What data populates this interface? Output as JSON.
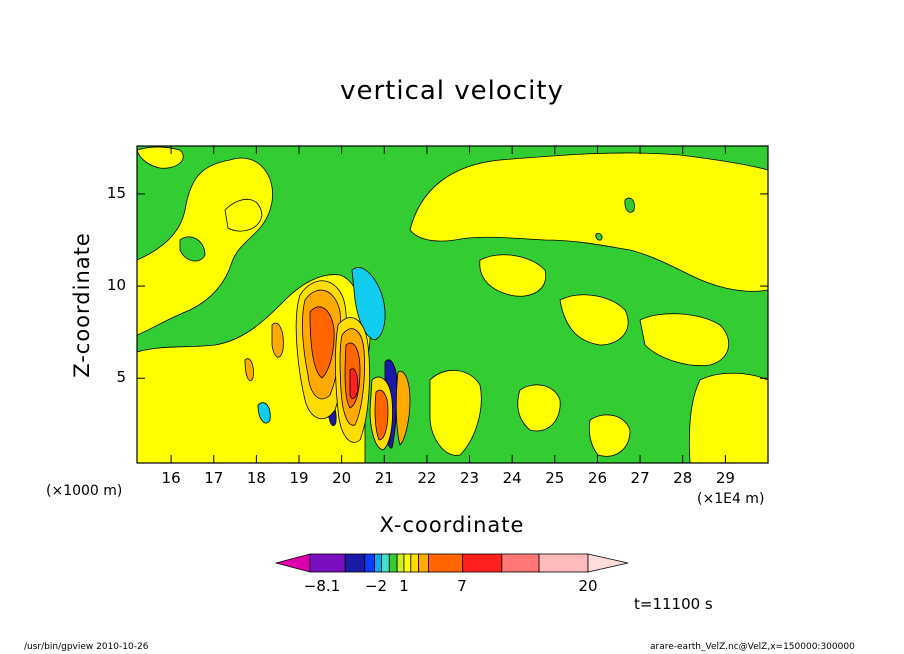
{
  "chart_data": {
    "type": "heatmap",
    "title": "vertical velocity",
    "xlabel": "X-coordinate",
    "ylabel": "Z-coordinate",
    "x_unit_left": "(×1000 m)",
    "x_unit_right": "(×1E4 m)",
    "x_ticks": [
      "16",
      "17",
      "18",
      "19",
      "20",
      "21",
      "22",
      "23",
      "24",
      "25",
      "26",
      "27",
      "28",
      "29"
    ],
    "y_ticks": [
      "5",
      "10",
      "15"
    ],
    "colorbar_labels": [
      "-8.1",
      "-2",
      "1",
      "7",
      "20"
    ],
    "colorbar_colors": [
      "#dd00aa",
      "#7a0dbf",
      "#1a1aa8",
      "#0a3cff",
      "#11aaee",
      "#44ddcc",
      "#33cc33",
      "#ccee22",
      "#ffff00",
      "#ffdd00",
      "#ffaa00",
      "#ff6600",
      "#ff2020",
      "#ff7777",
      "#ffbbbb",
      "#ffdddd"
    ],
    "timestamp": "t=11100 s",
    "grid": false
  },
  "footer": {
    "left": "/usr/bin/gpview   2010-10-26",
    "right": "arare-earth_VelZ.nc@VelZ,x=150000:300000"
  }
}
